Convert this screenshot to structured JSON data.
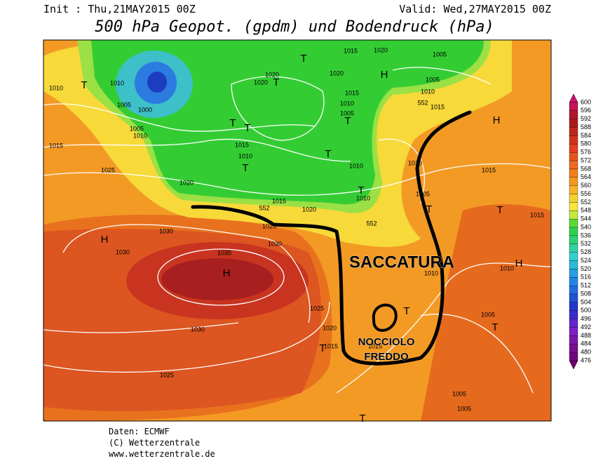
{
  "header": {
    "init": "Init : Thu,21MAY2015 00Z",
    "valid": "Valid: Wed,27MAY2015 00Z",
    "title": "500 hPa Geopot. (gpdm) und Bodendruck (hPa)"
  },
  "colorbar": {
    "ticks": [
      600,
      596,
      592,
      588,
      584,
      580,
      576,
      572,
      568,
      564,
      560,
      556,
      552,
      548,
      544,
      540,
      536,
      532,
      528,
      524,
      520,
      516,
      512,
      508,
      504,
      500,
      496,
      492,
      488,
      484,
      480,
      476
    ]
  },
  "map": {
    "isobar_labels": [
      "1015",
      "1020",
      "1005",
      "1010",
      "1010",
      "1005",
      "1000",
      "1005",
      "1010",
      "1020",
      "1020",
      "1020",
      "1015",
      "1010",
      "1005",
      "1005",
      "1010",
      "1015",
      "1015",
      "1025",
      "1015",
      "1010",
      "1010",
      "1010",
      "1015",
      "1020",
      "1015",
      "1020",
      "1010",
      "1005",
      "1015",
      "1025",
      "1030",
      "1030",
      "1035",
      "1030",
      "1010",
      "1010",
      "1025",
      "1020",
      "1030",
      "1015",
      "1015",
      "1005",
      "1025",
      "1005",
      "1005"
    ],
    "contour_labels": [
      "552",
      "552",
      "552"
    ],
    "pressure_centers": [
      "T",
      "T",
      "H",
      "T",
      "T",
      "T",
      "T",
      "T",
      "T",
      "T",
      "H",
      "T",
      "T",
      "H",
      "H",
      "H",
      "T",
      "T",
      "T",
      "T"
    ],
    "annotations": [
      "SACCATURA",
      "NOCCIOLO",
      "FREDDO"
    ]
  },
  "footer": {
    "lines": [
      "Daten: ECMWF",
      "(C) Wetterzentrale",
      "www.wetterzentrale.de"
    ]
  }
}
